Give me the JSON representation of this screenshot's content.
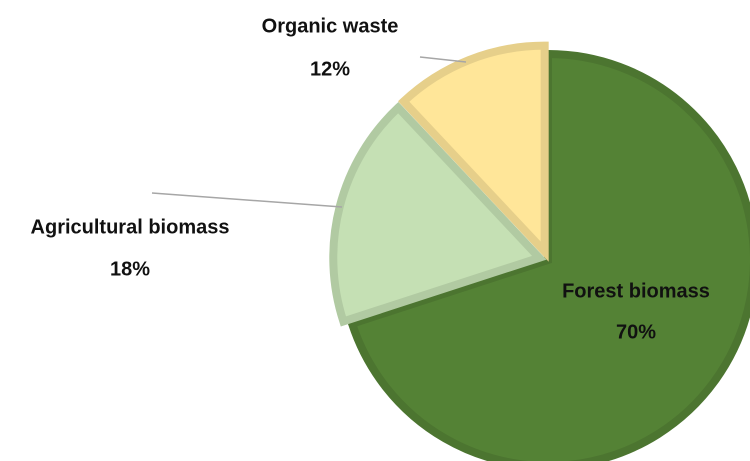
{
  "chart_data": {
    "type": "pie",
    "categories": [
      "Forest biomass",
      "Agricultural biomass",
      "Organic waste"
    ],
    "values": [
      70,
      18,
      12
    ],
    "value_labels": [
      "70%",
      "18%",
      "12%"
    ],
    "colors": [
      "#548235",
      "#c5e0b4",
      "#ffe699"
    ]
  }
}
